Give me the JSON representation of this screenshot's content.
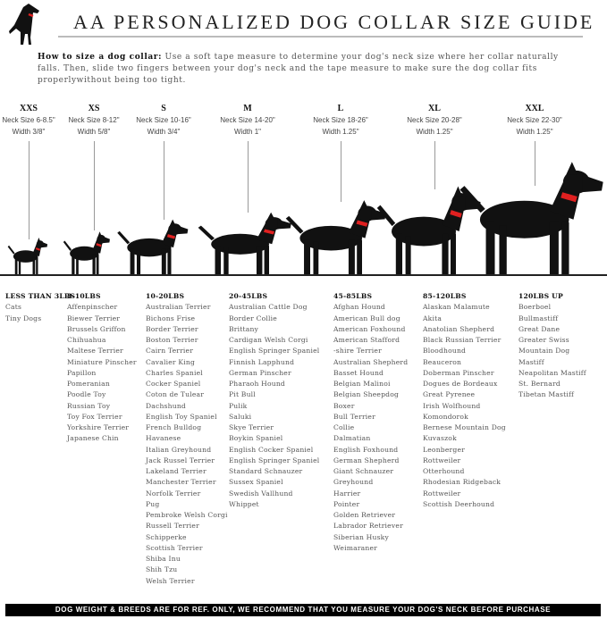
{
  "title": "AA PERSONALIZED DOG COLLAR SIZE GUIDE",
  "intro": {
    "lead": "How to size a dog collar:",
    "text": " Use a soft tape measure to determine your dog's neck size where her collar naturally falls. Then, slide two fingers between your dog's neck and the tape measure to make sure the dog collar fits properlywithout being too tight."
  },
  "colors": {
    "collar": "#e02020",
    "silhouette": "#111111",
    "footer_bg": "#000000"
  },
  "sizes": [
    {
      "code": "XXS",
      "neck": "Neck Size 6-8.5\"",
      "width": "Width 3/8\""
    },
    {
      "code": "XS",
      "neck": "Neck Size 8-12\"",
      "width": "Width 5/8\""
    },
    {
      "code": "S",
      "neck": "Neck Size 10-16\"",
      "width": "Width 3/4\""
    },
    {
      "code": "M",
      "neck": "Neck Size 14-20\"",
      "width": "Width 1\""
    },
    {
      "code": "L",
      "neck": "Neck Size 18-26\"",
      "width": "Width 1.25\""
    },
    {
      "code": "XL",
      "neck": "Neck Size 20-28\"",
      "width": "Width 1.25\""
    },
    {
      "code": "XXL",
      "neck": "Neck Size 22-30\"",
      "width": "Width 1.25\""
    }
  ],
  "columns": [
    {
      "header": "LESS THAN 3LBS",
      "breeds": [
        "Cats",
        "Tiny Dogs"
      ]
    },
    {
      "header": "3-10LBS",
      "breeds": [
        "Affenpinscher",
        "Biewer Terrier",
        "Brussels Griffon",
        "Chihuahua",
        "Maltese Terrier",
        "Miniature Pinscher",
        "Papillon",
        "Pomeranian",
        "Poodle Toy",
        "Russian Toy",
        "Toy Fox Terrier",
        "Yorkshire Terrier",
        "Japanese Chin"
      ]
    },
    {
      "header": "10-20LBS",
      "breeds": [
        "Australian Terrier",
        "Bichons Frise",
        "Border Terrier",
        "Boston Terrier",
        "Cairn Terrier",
        "Cavalier King",
        "Charles Spaniel",
        "Cocker Spaniel",
        "Coton de Tulear",
        "Dachshund",
        "English Toy Spaniel",
        "French Bulldog",
        "Havanese",
        "Italian Greyhound",
        "Jack Russel Terrier",
        "Lakeland Terrier",
        "Manchester Terrier",
        "Norfolk Terrier",
        "Pug",
        "Pembroke Welsh Corgi",
        "Russell Terrier",
        "Schipperke",
        "Scottish Terrier",
        "Shiba Inu",
        "Shih Tzu",
        "Welsh Terrier"
      ]
    },
    {
      "header": "20-45LBS",
      "breeds": [
        "Australian Cattle Dog",
        "Border Collie",
        "Brittany",
        "Cardigan Welsh Corgi",
        "English Springer Spaniel",
        "Finnish Lapphund",
        "German Pinscher",
        "Pharaoh Hound",
        "Pit Bull",
        "Pulik",
        "Saluki",
        "Skye Terrier",
        "Boykin Spaniel",
        "English Cocker Spaniel",
        "English Springer Spaniel",
        "Standard Schnauzer",
        "Sussex Spaniel",
        "Swedish Vallhund",
        "Whippet"
      ]
    },
    {
      "header": "45-85LBS",
      "breeds": [
        "Afghan Hound",
        "American Bull dog",
        "American Foxhound",
        "American Stafford",
        "-shire Terrier",
        "Australian Shepherd",
        "Basset Hound",
        "Belgian Malinoi",
        "Belgian Sheepdog",
        "Boxer",
        "Bull Terrier",
        "Collie",
        "Dalmatian",
        "English Foxhound",
        "German Shepherd",
        "Giant Schnauzer",
        "Greyhound",
        "Harrier",
        "Pointer",
        "Golden Retriever",
        "Labrador Retriever",
        "Siberian Husky",
        "Weimaraner"
      ]
    },
    {
      "header": "85-120LBS",
      "breeds": [
        "Alaskan Malamute",
        "Akita",
        "Anatolian Shepherd",
        "Black Russian Terrier",
        "Bloodhound",
        "Beauceron",
        "Doberman Pinscher",
        "Dogues de Bordeaux",
        "Great Pyrenee",
        "Irish Wolfhound",
        "Komondorok",
        "Bernese Mountain Dog",
        "Kuvaszok",
        "Leonberger",
        "Rottweiler",
        "Otterhound",
        "Rhodesian Ridgeback",
        "Rottweiler",
        "Scottish Deerhound"
      ]
    },
    {
      "header": "120LBS UP",
      "breeds": [
        "Boerboel",
        "Bullmastiff",
        "Great Dane",
        "Greater Swiss",
        "Mountain Dog",
        "Mastiff",
        "Neapolitan Mastiff",
        "St. Bernard",
        "Tibetan Mastiff"
      ]
    }
  ],
  "footer": "DOG WEIGHT & BREEDS ARE FOR REF. ONLY, WE RECOMMEND THAT YOU MEASURE YOUR DOG'S NECK BEFORE PURCHASE"
}
